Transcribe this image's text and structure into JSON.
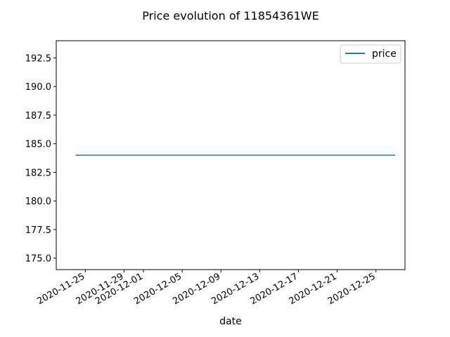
{
  "chart_data": {
    "type": "line",
    "title": "Price evolution of 11854361WE",
    "xlabel": "date",
    "ylabel": "",
    "x_tick_labels": [
      "2020-11-25",
      "2020-11-29",
      "2020-12-01",
      "2020-12-05",
      "2020-12-09",
      "2020-12-13",
      "2020-12-17",
      "2020-12-21",
      "2020-12-25"
    ],
    "y_tick_labels": [
      "175.0",
      "177.5",
      "180.0",
      "182.5",
      "185.0",
      "187.5",
      "190.0",
      "192.5"
    ],
    "xlim": [
      "2020-11-22",
      "2020-12-28"
    ],
    "ylim": [
      174.0,
      194.0
    ],
    "grid": false,
    "legend_position": "top-right",
    "series": [
      {
        "name": "price",
        "color": "#1f77b4",
        "x": [
          "2020-11-24",
          "2020-12-27"
        ],
        "y": [
          184.0,
          184.0
        ]
      }
    ]
  }
}
